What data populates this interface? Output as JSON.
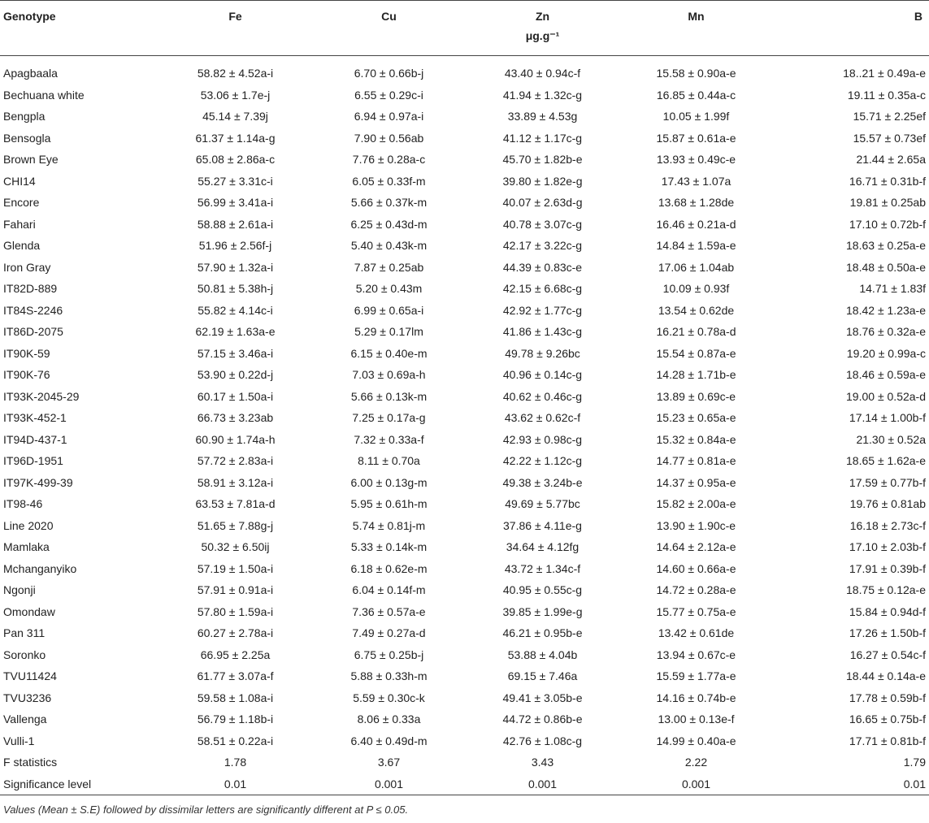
{
  "header": {
    "genotype": "Genotype",
    "fe": "Fe",
    "cu": "Cu",
    "zn": "Zn",
    "unit": "μg.g⁻¹",
    "mn": "Mn",
    "b": "B"
  },
  "rows": [
    [
      "Apagbaala",
      "58.82 ± 4.52a-i",
      "6.70 ± 0.66b-j",
      "43.40 ± 0.94c-f",
      "15.58 ± 0.90a-e",
      "18..21 ± 0.49a-e"
    ],
    [
      "Bechuana white",
      "53.06 ± 1.7e-j",
      "6.55 ± 0.29c-i",
      "41.94 ± 1.32c-g",
      "16.85 ± 0.44a-c",
      "19.11 ± 0.35a-c"
    ],
    [
      "Bengpla",
      "45.14 ± 7.39j",
      "6.94 ± 0.97a-i",
      "33.89 ± 4.53g",
      "10.05 ± 1.99f",
      "15.71 ± 2.25ef"
    ],
    [
      "Bensogla",
      "61.37 ± 1.14a-g",
      "7.90 ± 0.56ab",
      "41.12 ± 1.17c-g",
      "15.87 ± 0.61a-e",
      "15.57 ± 0.73ef"
    ],
    [
      "Brown Eye",
      "65.08 ± 2.86a-c",
      "7.76 ± 0.28a-c",
      "45.70 ± 1.82b-e",
      "13.93 ± 0.49c-e",
      "21.44 ± 2.65a"
    ],
    [
      "CHI14",
      "55.27 ± 3.31c-i",
      "6.05 ± 0.33f-m",
      "39.80 ± 1.82e-g",
      "17.43 ± 1.07a",
      "16.71 ± 0.31b-f"
    ],
    [
      "Encore",
      "56.99 ± 3.41a-i",
      "5.66 ± 0.37k-m",
      "40.07 ± 2.63d-g",
      "13.68 ± 1.28de",
      "19.81 ± 0.25ab"
    ],
    [
      "Fahari",
      "58.88 ± 2.61a-i",
      "6.25 ± 0.43d-m",
      "40.78 ± 3.07c-g",
      "16.46 ± 0.21a-d",
      "17.10 ± 0.72b-f"
    ],
    [
      "Glenda",
      "51.96 ± 2.56f-j",
      "5.40 ± 0.43k-m",
      "42.17 ± 3.22c-g",
      "14.84 ± 1.59a-e",
      "18.63 ± 0.25a-e"
    ],
    [
      "Iron Gray",
      "57.90 ± 1.32a-i",
      "7.87 ± 0.25ab",
      "44.39 ± 0.83c-e",
      "17.06 ± 1.04ab",
      "18.48 ± 0.50a-e"
    ],
    [
      "IT82D-889",
      "50.81 ± 5.38h-j",
      "5.20 ± 0.43m",
      "42.15 ± 6.68c-g",
      "10.09 ± 0.93f",
      "14.71 ± 1.83f"
    ],
    [
      "IT84S-2246",
      "55.82 ± 4.14c-i",
      "6.99 ± 0.65a-i",
      "42.92 ± 1.77c-g",
      "13.54 ± 0.62de",
      "18.42 ± 1.23a-e"
    ],
    [
      "IT86D-2075",
      "62.19 ± 1.63a-e",
      "5.29 ± 0.17lm",
      "41.86 ± 1.43c-g",
      "16.21 ± 0.78a-d",
      "18.76 ± 0.32a-e"
    ],
    [
      "IT90K-59",
      "57.15 ± 3.46a-i",
      "6.15 ± 0.40e-m",
      "49.78 ± 9.26bc",
      "15.54 ± 0.87a-e",
      "19.20 ± 0.99a-c"
    ],
    [
      "IT90K-76",
      "53.90 ± 0.22d-j",
      "7.03 ± 0.69a-h",
      "40.96 ± 0.14c-g",
      "14.28 ± 1.71b-e",
      "18.46 ± 0.59a-e"
    ],
    [
      "IT93K-2045-29",
      "60.17 ± 1.50a-i",
      "5.66 ± 0.13k-m",
      "40.62 ± 0.46c-g",
      "13.89 ± 0.69c-e",
      "19.00 ± 0.52a-d"
    ],
    [
      "IT93K-452-1",
      "66.73 ± 3.23ab",
      "7.25 ± 0.17a-g",
      "43.62 ± 0.62c-f",
      "15.23 ± 0.65a-e",
      "17.14 ± 1.00b-f"
    ],
    [
      "IT94D-437-1",
      "60.90 ± 1.74a-h",
      "7.32 ± 0.33a-f",
      "42.93 ± 0.98c-g",
      "15.32 ± 0.84a-e",
      "21.30 ± 0.52a"
    ],
    [
      "IT96D-1951",
      "57.72 ± 2.83a-i",
      "8.11 ± 0.70a",
      "42.22 ± 1.12c-g",
      "14.77 ± 0.81a-e",
      "18.65 ± 1.62a-e"
    ],
    [
      "IT97K-499-39",
      "58.91 ± 3.12a-i",
      "6.00 ± 0.13g-m",
      "49.38 ± 3.24b-e",
      "14.37 ± 0.95a-e",
      "17.59 ± 0.77b-f"
    ],
    [
      "IT98-46",
      "63.53 ± 7.81a-d",
      "5.95 ± 0.61h-m",
      "49.69 ± 5.77bc",
      "15.82 ± 2.00a-e",
      "19.76 ± 0.81ab"
    ],
    [
      "Line 2020",
      "51.65 ± 7.88g-j",
      "5.74 ± 0.81j-m",
      "37.86 ± 4.11e-g",
      "13.90 ± 1.90c-e",
      "16.18 ± 2.73c-f"
    ],
    [
      "Mamlaka",
      "50.32 ± 6.50ij",
      "5.33 ± 0.14k-m",
      "34.64 ± 4.12fg",
      "14.64 ± 2.12a-e",
      "17.10 ± 2.03b-f"
    ],
    [
      "Mchanganyiko",
      "57.19 ± 1.50a-i",
      "6.18 ± 0.62e-m",
      "43.72 ± 1.34c-f",
      "14.60 ± 0.66a-e",
      "17.91 ± 0.39b-f"
    ],
    [
      "Ngonji",
      "57.91 ± 0.91a-i",
      "6.04 ± 0.14f-m",
      "40.95 ± 0.55c-g",
      "14.72 ± 0.28a-e",
      "18.75 ± 0.12a-e"
    ],
    [
      "Omondaw",
      "57.80 ± 1.59a-i",
      "7.36 ± 0.57a-e",
      "39.85 ± 1.99e-g",
      "15.77 ± 0.75a-e",
      "15.84 ± 0.94d-f"
    ],
    [
      "Pan 311",
      "60.27 ± 2.78a-i",
      "7.49 ± 0.27a-d",
      "46.21 ± 0.95b-e",
      "13.42 ± 0.61de",
      "17.26 ± 1.50b-f"
    ],
    [
      "Soronko",
      "66.95 ± 2.25a",
      "6.75 ± 0.25b-j",
      "53.88 ± 4.04b",
      "13.94 ± 0.67c-e",
      "16.27 ± 0.54c-f"
    ],
    [
      "TVU11424",
      "61.77 ± 3.07a-f",
      "5.88 ± 0.33h-m",
      "69.15 ± 7.46a",
      "15.59 ± 1.77a-e",
      "18.44 ± 0.14a-e"
    ],
    [
      "TVU3236",
      "59.58 ± 1.08a-i",
      "5.59 ± 0.30c-k",
      "49.41 ± 3.05b-e",
      "14.16 ± 0.74b-e",
      "17.78 ± 0.59b-f"
    ],
    [
      "Vallenga",
      "56.79 ± 1.18b-i",
      "8.06 ± 0.33a",
      "44.72 ± 0.86b-e",
      "13.00 ± 0.13e-f",
      "16.65 ± 0.75b-f"
    ],
    [
      "Vulli-1",
      "58.51 ± 0.22a-i",
      "6.40 ± 0.49d-m",
      "42.76 ± 1.08c-g",
      "14.99 ± 0.40a-e",
      "17.71 ± 0.81b-f"
    ],
    [
      "F statistics",
      "1.78",
      "3.67",
      "3.43",
      "2.22",
      "1.79"
    ],
    [
      "Significance level",
      "0.01",
      "0.001",
      "0.001",
      "0.001",
      "0.01"
    ]
  ],
  "footnote": "Values (Mean ± S.E) followed by dissimilar letters are significantly different at P ≤ 0.05."
}
